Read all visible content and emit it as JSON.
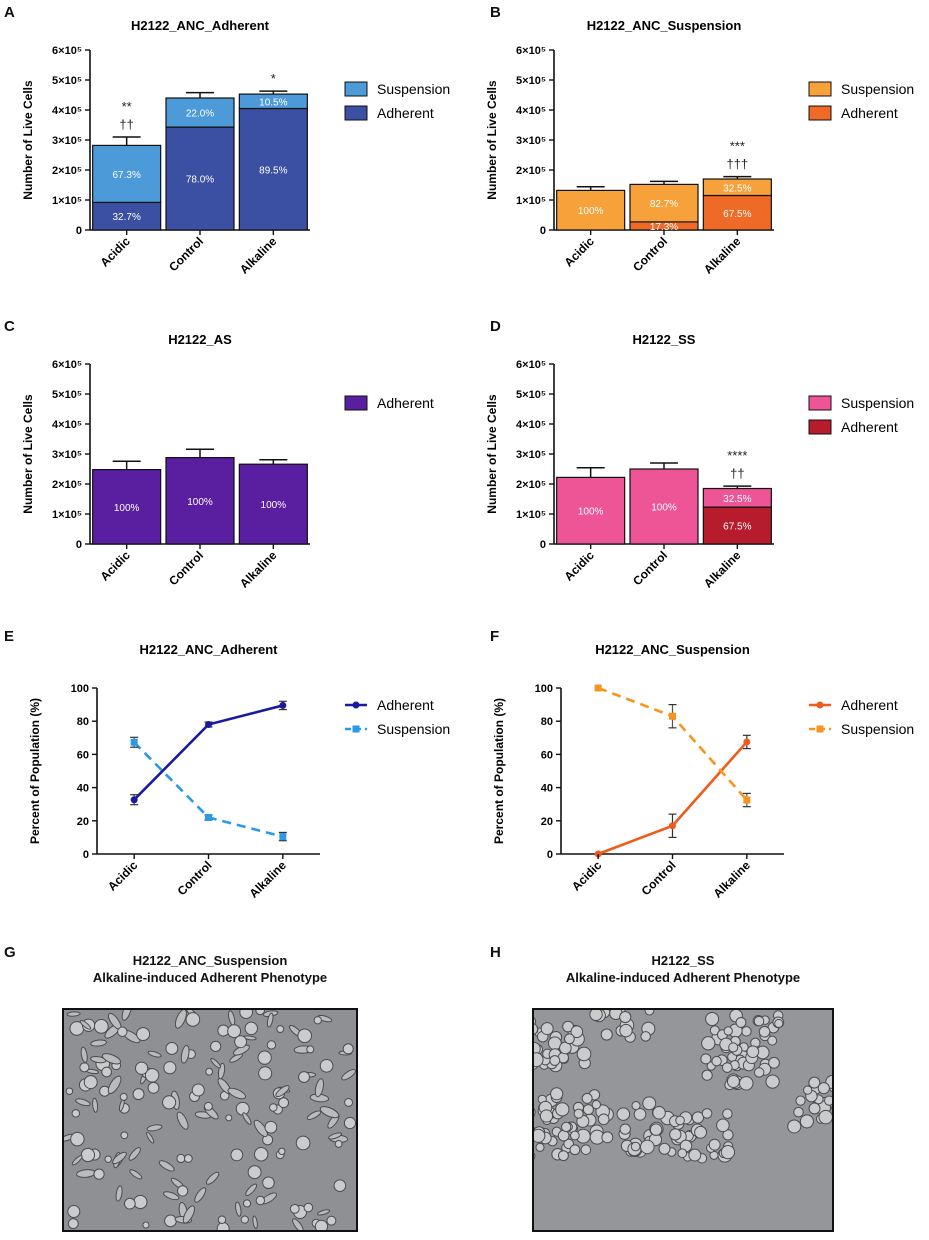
{
  "panels": {
    "A": {
      "letter": "A"
    },
    "B": {
      "letter": "B"
    },
    "C": {
      "letter": "C"
    },
    "D": {
      "letter": "D"
    },
    "E": {
      "letter": "E"
    },
    "F": {
      "letter": "F"
    },
    "G": {
      "letter": "G"
    },
    "H": {
      "letter": "H"
    }
  },
  "chart_data": [
    {
      "id": "A",
      "type": "bar",
      "stacked": true,
      "title": "H2122_ANC_Adherent",
      "ylabel": "Number of Live Cells",
      "xlabel": "",
      "categories": [
        "Acidic",
        "Control",
        "Alkaline"
      ],
      "ylim": [
        0,
        600000
      ],
      "yticks": [
        "0",
        "1×10⁵",
        "2×10⁵",
        "3×10⁵",
        "4×10⁵",
        "5×10⁵",
        "6×10⁵"
      ],
      "series": [
        {
          "name": "Adherent",
          "color": "#3b4fa3",
          "values": [
            92000,
            343000,
            405000
          ],
          "err": [
            15000,
            35000,
            0
          ],
          "labels": [
            "32.7%",
            "78.0%",
            "89.5%"
          ]
        },
        {
          "name": "Suspension",
          "color": "#4d9ad8",
          "values": [
            190000,
            97000,
            48000
          ],
          "err": [
            28000,
            18000,
            10000
          ],
          "labels": [
            "67.3%",
            "22.0%",
            "10.5%"
          ]
        }
      ],
      "legend": [
        "Suspension",
        "Adherent"
      ],
      "annotations": [
        {
          "category": "Acidic",
          "lines": [
            "**",
            "††"
          ]
        },
        {
          "category": "Alkaline",
          "lines": [
            "*"
          ]
        }
      ]
    },
    {
      "id": "B",
      "type": "bar",
      "stacked": true,
      "title": "H2122_ANC_Suspension",
      "ylabel": "Number of Live Cells",
      "xlabel": "",
      "categories": [
        "Acidic",
        "Control",
        "Alkaline"
      ],
      "ylim": [
        0,
        600000
      ],
      "yticks": [
        "0",
        "1×10⁵",
        "2×10⁵",
        "3×10⁵",
        "4×10⁵",
        "5×10⁵",
        "6×10⁵"
      ],
      "series": [
        {
          "name": "Adherent",
          "color": "#ef6a27",
          "values": [
            0,
            27000,
            115000
          ],
          "err": [
            0,
            15000,
            0
          ],
          "labels": [
            "",
            "17.3%",
            "67.5%"
          ]
        },
        {
          "name": "Suspension",
          "color": "#f7a13a",
          "values": [
            132000,
            125000,
            55000
          ],
          "err": [
            12000,
            10000,
            8000
          ],
          "labels": [
            "100%",
            "82.7%",
            "32.5%"
          ]
        }
      ],
      "legend": [
        "Suspension",
        "Adherent"
      ],
      "annotations": [
        {
          "category": "Alkaline",
          "lines": [
            "***",
            "†††"
          ]
        }
      ]
    },
    {
      "id": "C",
      "type": "bar",
      "stacked": false,
      "title": "H2122_AS",
      "ylabel": "Number of Live Cells",
      "xlabel": "",
      "categories": [
        "Acidic",
        "Control",
        "Alkaline"
      ],
      "ylim": [
        0,
        600000
      ],
      "yticks": [
        "0",
        "1×10⁵",
        "2×10⁵",
        "3×10⁵",
        "4×10⁵",
        "5×10⁵",
        "6×10⁵"
      ],
      "series": [
        {
          "name": "Adherent",
          "color": "#5a1fa0",
          "values": [
            248000,
            288000,
            266000
          ],
          "err": [
            28000,
            28000,
            15000
          ],
          "labels": [
            "100%",
            "100%",
            "100%"
          ]
        }
      ],
      "legend": [
        "Adherent"
      ],
      "annotations": []
    },
    {
      "id": "D",
      "type": "bar",
      "stacked": true,
      "title": "H2122_SS",
      "ylabel": "Number of Live Cells",
      "xlabel": "",
      "categories": [
        "Acidic",
        "Control",
        "Alkaline"
      ],
      "ylim": [
        0,
        600000
      ],
      "yticks": [
        "0",
        "1×10⁵",
        "2×10⁵",
        "3×10⁵",
        "4×10⁵",
        "5×10⁵",
        "6×10⁵"
      ],
      "series": [
        {
          "name": "Adherent",
          "color": "#b71c2c",
          "values": [
            0,
            0,
            123000
          ],
          "err": [
            0,
            0,
            45000
          ],
          "labels": [
            "",
            "",
            "67.5%"
          ]
        },
        {
          "name": "Suspension",
          "color": "#ee5596",
          "values": [
            222000,
            250000,
            62000
          ],
          "err": [
            32000,
            20000,
            8000
          ],
          "labels": [
            "100%",
            "100%",
            "32.5%"
          ]
        }
      ],
      "legend": [
        "Suspension",
        "Adherent"
      ],
      "annotations": [
        {
          "category": "Alkaline",
          "lines": [
            "****",
            "††"
          ]
        }
      ]
    },
    {
      "id": "E",
      "type": "line",
      "title": "H2122_ANC_Adherent",
      "ylabel": "Percent of Population (%)",
      "xlabel": "",
      "categories": [
        "Acidic",
        "Control",
        "Alkaline"
      ],
      "ylim": [
        0,
        100
      ],
      "yticks": [
        "0",
        "20",
        "40",
        "60",
        "80",
        "100"
      ],
      "series": [
        {
          "name": "Adherent",
          "color": "#1a1a9e",
          "dashed": false,
          "marker": "circle",
          "values": [
            32.7,
            78.0,
            89.5
          ],
          "err": [
            3,
            1.5,
            2.5
          ]
        },
        {
          "name": "Suspension",
          "color": "#2a9ae6",
          "dashed": true,
          "marker": "square",
          "values": [
            67.3,
            22.0,
            10.5
          ],
          "err": [
            3,
            1.5,
            2.5
          ]
        }
      ],
      "legend": [
        "Adherent",
        "Suspension"
      ]
    },
    {
      "id": "F",
      "type": "line",
      "title": "H2122_ANC_Suspension",
      "ylabel": "Percent of Population (%)",
      "xlabel": "",
      "categories": [
        "Acidic",
        "Control",
        "Alkaline"
      ],
      "ylim": [
        0,
        100
      ],
      "yticks": [
        "0",
        "20",
        "40",
        "60",
        "80",
        "100"
      ],
      "series": [
        {
          "name": "Adherent",
          "color": "#f05a1a",
          "dashed": false,
          "marker": "circle",
          "values": [
            0,
            17,
            67.5
          ],
          "err": [
            0,
            7,
            4
          ]
        },
        {
          "name": "Suspension",
          "color": "#f7941d",
          "dashed": true,
          "marker": "square",
          "values": [
            100,
            83,
            32.5
          ],
          "err": [
            0,
            7,
            4
          ]
        }
      ],
      "legend": [
        "Adherent",
        "Suspension"
      ]
    }
  ],
  "micrographs": {
    "G": {
      "title_line1": "H2122_ANC_Suspension",
      "title_line2": "Alkaline-induced Adherent Phenotype"
    },
    "H": {
      "title_line1": "H2122_SS",
      "title_line2": "Alkaline-induced Adherent Phenotype"
    }
  }
}
